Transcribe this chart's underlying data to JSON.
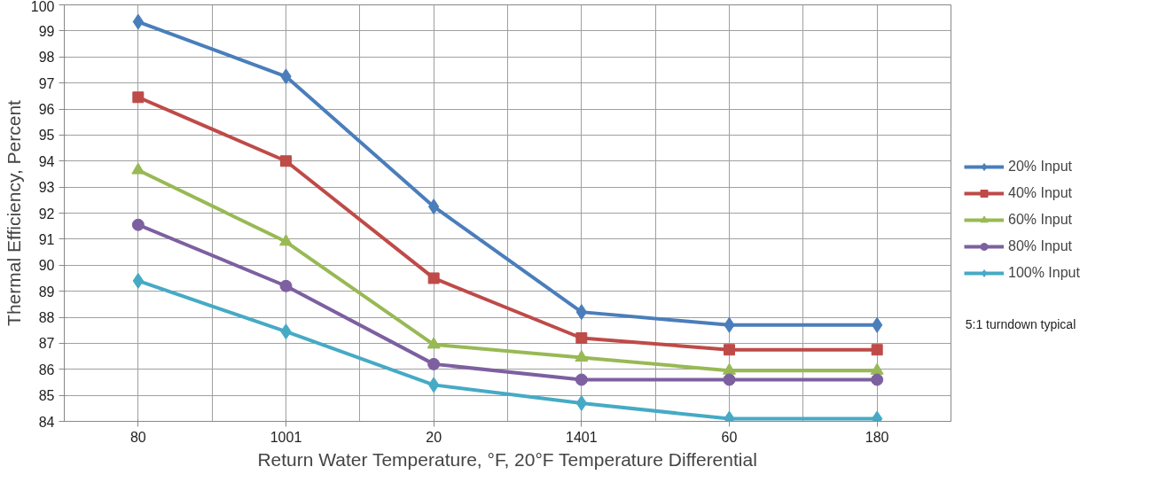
{
  "chart_data": {
    "type": "line",
    "xlabel": "Return Water Temperature, °F, 20°F Temperature Differential",
    "ylabel": "Thermal Efficiency, Percent",
    "categories": [
      "80",
      "1001",
      "20",
      "1401",
      "60",
      "180"
    ],
    "ylim": [
      84,
      100
    ],
    "yticks": [
      84,
      85,
      86,
      87,
      88,
      89,
      90,
      91,
      92,
      93,
      94,
      95,
      96,
      97,
      98,
      99,
      100
    ],
    "grid": true,
    "legend": "right",
    "line_style": "solid",
    "annotations": [
      "5:1 turndown typical"
    ],
    "series": [
      {
        "name": "20% Input",
        "color": "#4a7ebb",
        "marker": "diamond",
        "values": [
          99.35,
          97.25,
          92.25,
          88.2,
          87.7,
          87.7
        ]
      },
      {
        "name": "40% Input",
        "color": "#be4b48",
        "marker": "square",
        "values": [
          96.45,
          94.0,
          89.5,
          87.2,
          86.75,
          86.75
        ]
      },
      {
        "name": "60% Input",
        "color": "#98b954",
        "marker": "triangle",
        "values": [
          93.65,
          90.9,
          86.95,
          86.45,
          85.95,
          85.95
        ]
      },
      {
        "name": "80% Input",
        "color": "#7d60a0",
        "marker": "circle",
        "values": [
          91.55,
          89.2,
          86.2,
          85.6,
          85.6,
          85.6
        ]
      },
      {
        "name": "100% Input",
        "color": "#46aac5",
        "marker": "diamond",
        "values": [
          89.4,
          87.45,
          85.4,
          84.7,
          84.1,
          84.1
        ]
      }
    ]
  }
}
